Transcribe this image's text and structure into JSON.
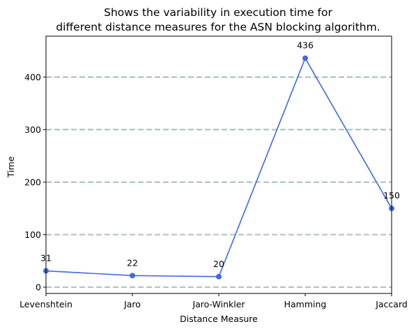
{
  "chart_data": {
    "type": "line",
    "title_lines": [
      "Shows the variability in execution time for",
      "different distance measures for the ASN blocking algorithm."
    ],
    "xlabel": "Distance Measure",
    "ylabel": "Time",
    "categories": [
      "Levenshtein",
      "Jaro",
      "Jaro-Winkler",
      "Hamming",
      "Jaccard"
    ],
    "series": [
      {
        "values": [
          31,
          22,
          20,
          436,
          150
        ]
      }
    ],
    "data_labels": [
      "31",
      "22",
      "20",
      "436",
      "150"
    ],
    "yticks": [
      0,
      100,
      200,
      300,
      400
    ],
    "ytick_labels": [
      "0",
      "100",
      "200",
      "300",
      "400"
    ],
    "ylim": [
      -12,
      478
    ],
    "grid": "horizontal-dashed",
    "colors": {
      "line": "#4169e1",
      "grid": "#b0c4c4"
    }
  }
}
